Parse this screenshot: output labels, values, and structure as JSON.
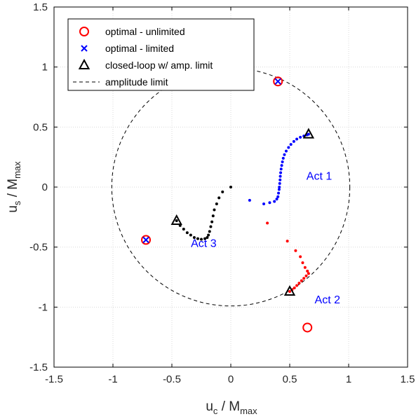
{
  "chart_data": {
    "type": "scatter",
    "xlim": [
      -1.5,
      1.5
    ],
    "ylim": [
      -1.5,
      1.5
    ],
    "xticks": [
      -1.5,
      -1,
      -0.5,
      0,
      0.5,
      1,
      1.5
    ],
    "yticks": [
      -1.5,
      -1,
      -0.5,
      0,
      0.5,
      1,
      1.5
    ],
    "xtick_labels": [
      "-1.5",
      "-1",
      "-0.5",
      "0",
      "0.5",
      "1",
      "1.5"
    ],
    "ytick_labels": [
      "-1.5",
      "-1",
      "-0.5",
      "0",
      "0.5",
      "1",
      "1.5"
    ],
    "xlabel_main": "u",
    "xlabel_sub": "c",
    "xlabel_tail": " / M",
    "xlabel_tail_sub": "max",
    "ylabel_main": "u",
    "ylabel_sub": "s",
    "ylabel_tail": " / M",
    "ylabel_tail_sub": "max",
    "grid": true,
    "legend_position": "top-left",
    "legend": [
      {
        "label": "optimal - unlimited",
        "marker": "circle",
        "color": "#ff0000"
      },
      {
        "label": "optimal - limited",
        "marker": "x",
        "color": "#0000ff"
      },
      {
        "label": "closed-loop w/ amp. limit",
        "marker": "triangle",
        "color": "#000000"
      },
      {
        "label": "amplitude limit",
        "marker": "dashed-line",
        "color": "#000000"
      }
    ],
    "amplitude_limit_radius": 1,
    "optimal_unlimited": [
      [
        0.4,
        0.88
      ],
      [
        -0.72,
        -0.44
      ],
      [
        0.65,
        -1.17
      ]
    ],
    "optimal_limited": [
      [
        0.4,
        0.88
      ],
      [
        -0.72,
        -0.44
      ]
    ],
    "closed_loop_final": [
      [
        0.66,
        0.44
      ],
      [
        0.5,
        -0.87
      ],
      [
        -0.46,
        -0.28
      ]
    ],
    "trajectories": [
      {
        "name": "Act 1",
        "color": "#0000ff",
        "label_at": [
          0.75,
          0.06
        ],
        "points": [
          [
            0.16,
            -0.11
          ],
          [
            0.28,
            -0.14
          ],
          [
            0.33,
            -0.13
          ],
          [
            0.37,
            -0.12
          ],
          [
            0.39,
            -0.1
          ],
          [
            0.4,
            -0.08
          ],
          [
            0.405,
            -0.05
          ],
          [
            0.41,
            -0.02
          ],
          [
            0.412,
            0.0
          ],
          [
            0.415,
            0.03
          ],
          [
            0.418,
            0.06
          ],
          [
            0.42,
            0.09
          ],
          [
            0.423,
            0.12
          ],
          [
            0.427,
            0.15
          ],
          [
            0.432,
            0.18
          ],
          [
            0.438,
            0.21
          ],
          [
            0.445,
            0.24
          ],
          [
            0.455,
            0.27
          ],
          [
            0.47,
            0.3
          ],
          [
            0.49,
            0.33
          ],
          [
            0.51,
            0.355
          ],
          [
            0.535,
            0.38
          ],
          [
            0.56,
            0.4
          ],
          [
            0.59,
            0.415
          ],
          [
            0.62,
            0.425
          ],
          [
            0.645,
            0.435
          ],
          [
            0.66,
            0.44
          ]
        ]
      },
      {
        "name": "Act 2",
        "color": "#ff0000",
        "label_at": [
          0.82,
          -0.97
        ],
        "points": [
          [
            0.31,
            -0.3
          ],
          [
            0.48,
            -0.45
          ],
          [
            0.55,
            -0.53
          ],
          [
            0.59,
            -0.58
          ],
          [
            0.61,
            -0.63
          ],
          [
            0.63,
            -0.67
          ],
          [
            0.65,
            -0.7
          ],
          [
            0.66,
            -0.72
          ],
          [
            0.64,
            -0.74
          ],
          [
            0.62,
            -0.76
          ],
          [
            0.6,
            -0.78
          ],
          [
            0.58,
            -0.8
          ],
          [
            0.56,
            -0.82
          ],
          [
            0.54,
            -0.84
          ],
          [
            0.52,
            -0.855
          ],
          [
            0.5,
            -0.87
          ]
        ]
      },
      {
        "name": "Act 3",
        "color": "#000000",
        "label_at": [
          -0.23,
          -0.5
        ],
        "points": [
          [
            0.0,
            0.0
          ],
          [
            -0.07,
            -0.04
          ],
          [
            -0.1,
            -0.09
          ],
          [
            -0.12,
            -0.14
          ],
          [
            -0.14,
            -0.19
          ],
          [
            -0.15,
            -0.24
          ],
          [
            -0.16,
            -0.29
          ],
          [
            -0.17,
            -0.33
          ],
          [
            -0.18,
            -0.37
          ],
          [
            -0.19,
            -0.4
          ],
          [
            -0.2,
            -0.42
          ],
          [
            -0.22,
            -0.43
          ],
          [
            -0.25,
            -0.435
          ],
          [
            -0.28,
            -0.43
          ],
          [
            -0.31,
            -0.42
          ],
          [
            -0.34,
            -0.4
          ],
          [
            -0.37,
            -0.38
          ],
          [
            -0.4,
            -0.35
          ],
          [
            -0.43,
            -0.32
          ],
          [
            -0.46,
            -0.28
          ]
        ]
      }
    ]
  }
}
